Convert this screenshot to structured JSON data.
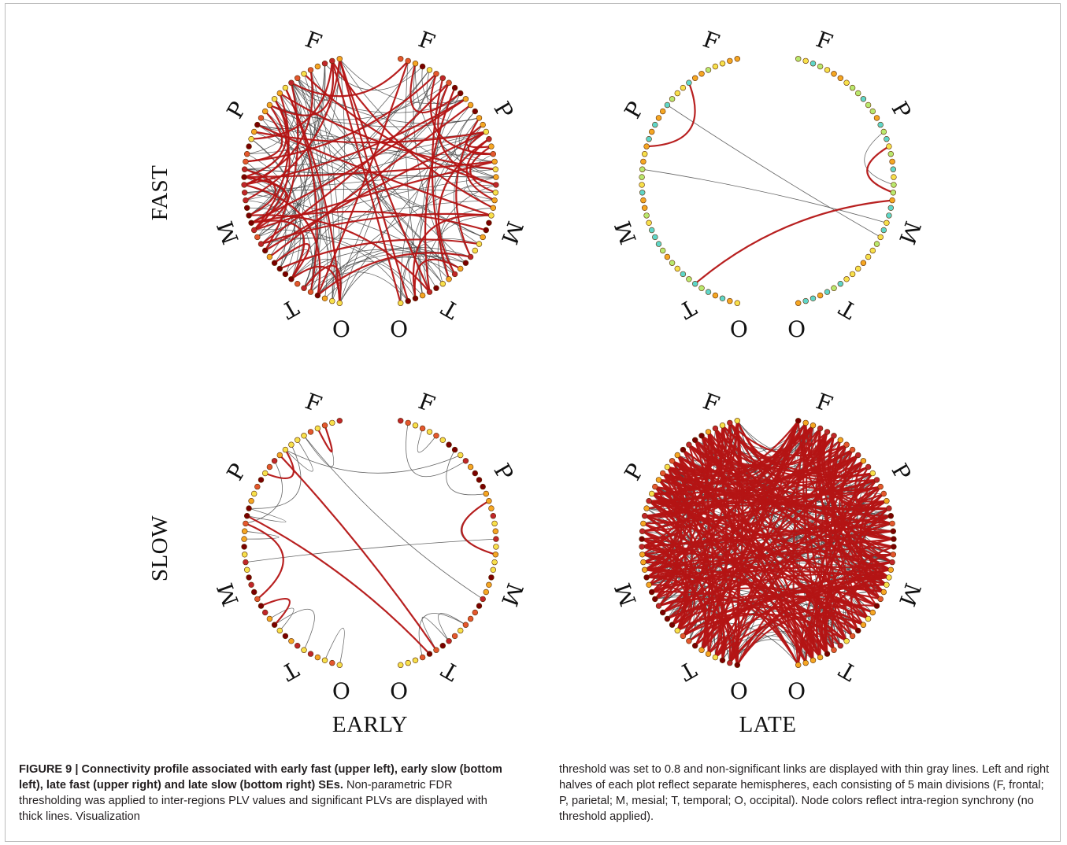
{
  "figure": {
    "col_labels": [
      "EARLY",
      "LATE"
    ],
    "row_labels": [
      "FAST",
      "SLOW"
    ],
    "region_labels": {
      "F": "F",
      "P": "P",
      "M": "M",
      "T": "T",
      "O": "O"
    },
    "panels": [
      {
        "id": "early-fast",
        "col": 0,
        "row": 0,
        "density": "high",
        "red_ratio": 0.33
      },
      {
        "id": "late-fast",
        "col": 1,
        "row": 0,
        "density": "sparse",
        "red_ratio": 0.5
      },
      {
        "id": "early-slow",
        "col": 0,
        "row": 1,
        "density": "low",
        "red_ratio": 0.25
      },
      {
        "id": "late-slow",
        "col": 1,
        "row": 1,
        "density": "very-high",
        "red_ratio": 0.55
      }
    ],
    "colors": {
      "significant": "#b41414",
      "non_significant": "#4a4a4a",
      "node_scale": [
        "#7a0000",
        "#c0262a",
        "#e4572e",
        "#f5a623",
        "#f7e04b",
        "#b9e86e",
        "#5fd6c9"
      ]
    }
  },
  "caption": {
    "bold": "FIGURE 9 | Connectivity profile associated with early fast (upper left), early slow (bottom left), late fast (upper right) and late slow (bottom right) SEs.",
    "left_text": "Non-parametric FDR thresholding was applied to inter-regions PLV values and significant PLVs are displayed with thick lines. Visualization",
    "right_text": "threshold was set to 0.8 and non-significant links are displayed with thin gray lines. Left and right halves of each plot reflect separate hemispheres, each consisting of 5 main divisions (F, frontal; P, parietal; M, mesial; T, temporal; O, occipital). Node colors reflect intra-region synchrony (no threshold applied)."
  }
}
